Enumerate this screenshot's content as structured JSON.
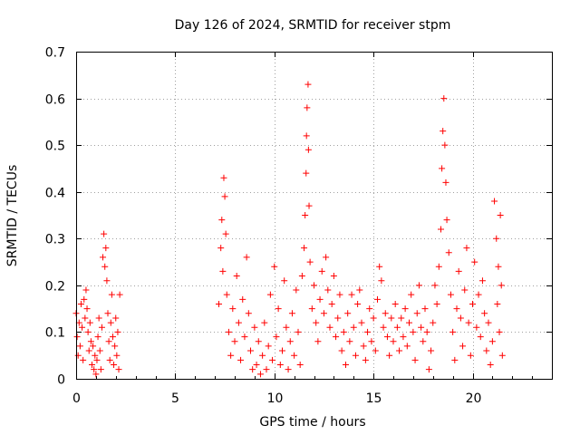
{
  "chart_data": {
    "type": "scatter",
    "title": "Day 126 of 2024, SRMTID for receiver stpm",
    "xlabel": "GPS time / hours",
    "ylabel": "SRMTID / TECUs",
    "xlim": [
      0,
      24
    ],
    "ylim": [
      0,
      0.7
    ],
    "xticks": [
      0,
      5,
      10,
      15,
      20
    ],
    "xtick_labels": [
      "0",
      "5",
      "10",
      "15",
      "20"
    ],
    "yticks": [
      0,
      0.1,
      0.2,
      0.3,
      0.4,
      0.5,
      0.6,
      0.7
    ],
    "ytick_labels": [
      "0",
      "0.1",
      "0.2",
      "0.3",
      "0.4",
      "0.5",
      "0.6",
      "0.7"
    ],
    "grid": true,
    "marker": "plus",
    "color": "#ff0000",
    "series": [
      {
        "name": "stpm",
        "points": [
          [
            0.0,
            0.14
          ],
          [
            0.05,
            0.09
          ],
          [
            0.1,
            0.05
          ],
          [
            0.15,
            0.12
          ],
          [
            0.2,
            0.07
          ],
          [
            0.25,
            0.16
          ],
          [
            0.3,
            0.11
          ],
          [
            0.35,
            0.04
          ],
          [
            0.4,
            0.17
          ],
          [
            0.45,
            0.13
          ],
          [
            0.5,
            0.19
          ],
          [
            0.55,
            0.15
          ],
          [
            0.6,
            0.1
          ],
          [
            0.65,
            0.06
          ],
          [
            0.7,
            0.12
          ],
          [
            0.75,
            0.08
          ],
          [
            0.8,
            0.03
          ],
          [
            0.85,
            0.07
          ],
          [
            0.9,
            0.02
          ],
          [
            0.95,
            0.05
          ],
          [
            1.0,
            0.01
          ],
          [
            1.05,
            0.04
          ],
          [
            1.1,
            0.09
          ],
          [
            1.15,
            0.13
          ],
          [
            1.2,
            0.06
          ],
          [
            1.25,
            0.02
          ],
          [
            1.3,
            0.11
          ],
          [
            1.35,
            0.26
          ],
          [
            1.4,
            0.31
          ],
          [
            1.45,
            0.24
          ],
          [
            1.5,
            0.28
          ],
          [
            1.55,
            0.21
          ],
          [
            1.6,
            0.14
          ],
          [
            1.65,
            0.08
          ],
          [
            1.7,
            0.04
          ],
          [
            1.75,
            0.12
          ],
          [
            1.8,
            0.18
          ],
          [
            1.85,
            0.09
          ],
          [
            1.9,
            0.03
          ],
          [
            1.95,
            0.07
          ],
          [
            2.0,
            0.13
          ],
          [
            2.05,
            0.05
          ],
          [
            2.1,
            0.1
          ],
          [
            2.15,
            0.02
          ],
          [
            2.2,
            0.18
          ],
          [
            7.2,
            0.16
          ],
          [
            7.3,
            0.28
          ],
          [
            7.35,
            0.34
          ],
          [
            7.4,
            0.23
          ],
          [
            7.45,
            0.43
          ],
          [
            7.5,
            0.39
          ],
          [
            7.55,
            0.31
          ],
          [
            7.6,
            0.18
          ],
          [
            7.7,
            0.1
          ],
          [
            7.8,
            0.05
          ],
          [
            7.9,
            0.15
          ],
          [
            8.0,
            0.08
          ],
          [
            8.1,
            0.22
          ],
          [
            8.2,
            0.12
          ],
          [
            8.3,
            0.04
          ],
          [
            8.4,
            0.17
          ],
          [
            8.5,
            0.09
          ],
          [
            8.6,
            0.26
          ],
          [
            8.7,
            0.14
          ],
          [
            8.8,
            0.06
          ],
          [
            8.9,
            0.02
          ],
          [
            9.0,
            0.11
          ],
          [
            9.1,
            0.03
          ],
          [
            9.2,
            0.08
          ],
          [
            9.3,
            0.01
          ],
          [
            9.4,
            0.05
          ],
          [
            9.5,
            0.12
          ],
          [
            9.6,
            0.02
          ],
          [
            9.7,
            0.07
          ],
          [
            9.8,
            0.18
          ],
          [
            9.9,
            0.04
          ],
          [
            10.0,
            0.24
          ],
          [
            10.1,
            0.09
          ],
          [
            10.2,
            0.15
          ],
          [
            10.3,
            0.03
          ],
          [
            10.4,
            0.06
          ],
          [
            10.5,
            0.21
          ],
          [
            10.6,
            0.11
          ],
          [
            10.7,
            0.02
          ],
          [
            10.8,
            0.08
          ],
          [
            10.9,
            0.14
          ],
          [
            11.0,
            0.05
          ],
          [
            11.1,
            0.19
          ],
          [
            11.2,
            0.1
          ],
          [
            11.3,
            0.03
          ],
          [
            11.4,
            0.22
          ],
          [
            11.5,
            0.28
          ],
          [
            11.55,
            0.35
          ],
          [
            11.6,
            0.44
          ],
          [
            11.62,
            0.52
          ],
          [
            11.65,
            0.58
          ],
          [
            11.7,
            0.63
          ],
          [
            11.72,
            0.49
          ],
          [
            11.75,
            0.37
          ],
          [
            11.8,
            0.25
          ],
          [
            11.9,
            0.15
          ],
          [
            12.0,
            0.2
          ],
          [
            12.1,
            0.12
          ],
          [
            12.2,
            0.08
          ],
          [
            12.3,
            0.17
          ],
          [
            12.4,
            0.23
          ],
          [
            12.5,
            0.14
          ],
          [
            12.6,
            0.26
          ],
          [
            12.7,
            0.19
          ],
          [
            12.8,
            0.11
          ],
          [
            12.9,
            0.16
          ],
          [
            13.0,
            0.22
          ],
          [
            13.1,
            0.09
          ],
          [
            13.2,
            0.13
          ],
          [
            13.3,
            0.18
          ],
          [
            13.4,
            0.06
          ],
          [
            13.5,
            0.1
          ],
          [
            13.6,
            0.03
          ],
          [
            13.7,
            0.14
          ],
          [
            13.8,
            0.08
          ],
          [
            13.9,
            0.18
          ],
          [
            14.0,
            0.11
          ],
          [
            14.1,
            0.05
          ],
          [
            14.2,
            0.16
          ],
          [
            14.3,
            0.19
          ],
          [
            14.4,
            0.12
          ],
          [
            14.5,
            0.07
          ],
          [
            14.6,
            0.04
          ],
          [
            14.7,
            0.1
          ],
          [
            14.8,
            0.15
          ],
          [
            14.9,
            0.08
          ],
          [
            15.0,
            0.13
          ],
          [
            15.1,
            0.06
          ],
          [
            15.2,
            0.17
          ],
          [
            15.3,
            0.24
          ],
          [
            15.4,
            0.21
          ],
          [
            15.5,
            0.11
          ],
          [
            15.6,
            0.14
          ],
          [
            15.7,
            0.09
          ],
          [
            15.8,
            0.05
          ],
          [
            15.9,
            0.13
          ],
          [
            16.0,
            0.08
          ],
          [
            16.1,
            0.16
          ],
          [
            16.2,
            0.11
          ],
          [
            16.3,
            0.06
          ],
          [
            16.4,
            0.13
          ],
          [
            16.5,
            0.09
          ],
          [
            16.6,
            0.15
          ],
          [
            16.7,
            0.07
          ],
          [
            16.8,
            0.12
          ],
          [
            16.9,
            0.18
          ],
          [
            17.0,
            0.1
          ],
          [
            17.1,
            0.04
          ],
          [
            17.2,
            0.14
          ],
          [
            17.3,
            0.2
          ],
          [
            17.4,
            0.11
          ],
          [
            17.5,
            0.08
          ],
          [
            17.6,
            0.15
          ],
          [
            17.7,
            0.1
          ],
          [
            17.8,
            0.02
          ],
          [
            17.9,
            0.06
          ],
          [
            18.0,
            0.12
          ],
          [
            18.1,
            0.2
          ],
          [
            18.2,
            0.16
          ],
          [
            18.3,
            0.24
          ],
          [
            18.4,
            0.32
          ],
          [
            18.45,
            0.45
          ],
          [
            18.5,
            0.53
          ],
          [
            18.55,
            0.6
          ],
          [
            18.6,
            0.5
          ],
          [
            18.65,
            0.42
          ],
          [
            18.7,
            0.34
          ],
          [
            18.8,
            0.27
          ],
          [
            18.9,
            0.18
          ],
          [
            19.0,
            0.1
          ],
          [
            19.1,
            0.04
          ],
          [
            19.2,
            0.15
          ],
          [
            19.3,
            0.23
          ],
          [
            19.4,
            0.13
          ],
          [
            19.5,
            0.07
          ],
          [
            19.6,
            0.19
          ],
          [
            19.7,
            0.28
          ],
          [
            19.8,
            0.12
          ],
          [
            19.9,
            0.05
          ],
          [
            20.0,
            0.16
          ],
          [
            20.1,
            0.25
          ],
          [
            20.2,
            0.11
          ],
          [
            20.3,
            0.18
          ],
          [
            20.4,
            0.09
          ],
          [
            20.5,
            0.21
          ],
          [
            20.6,
            0.14
          ],
          [
            20.7,
            0.06
          ],
          [
            20.8,
            0.12
          ],
          [
            20.9,
            0.03
          ],
          [
            21.0,
            0.08
          ],
          [
            21.1,
            0.38
          ],
          [
            21.2,
            0.3
          ],
          [
            21.25,
            0.16
          ],
          [
            21.3,
            0.24
          ],
          [
            21.35,
            0.1
          ],
          [
            21.4,
            0.35
          ],
          [
            21.45,
            0.2
          ],
          [
            21.5,
            0.05
          ]
        ]
      }
    ]
  }
}
